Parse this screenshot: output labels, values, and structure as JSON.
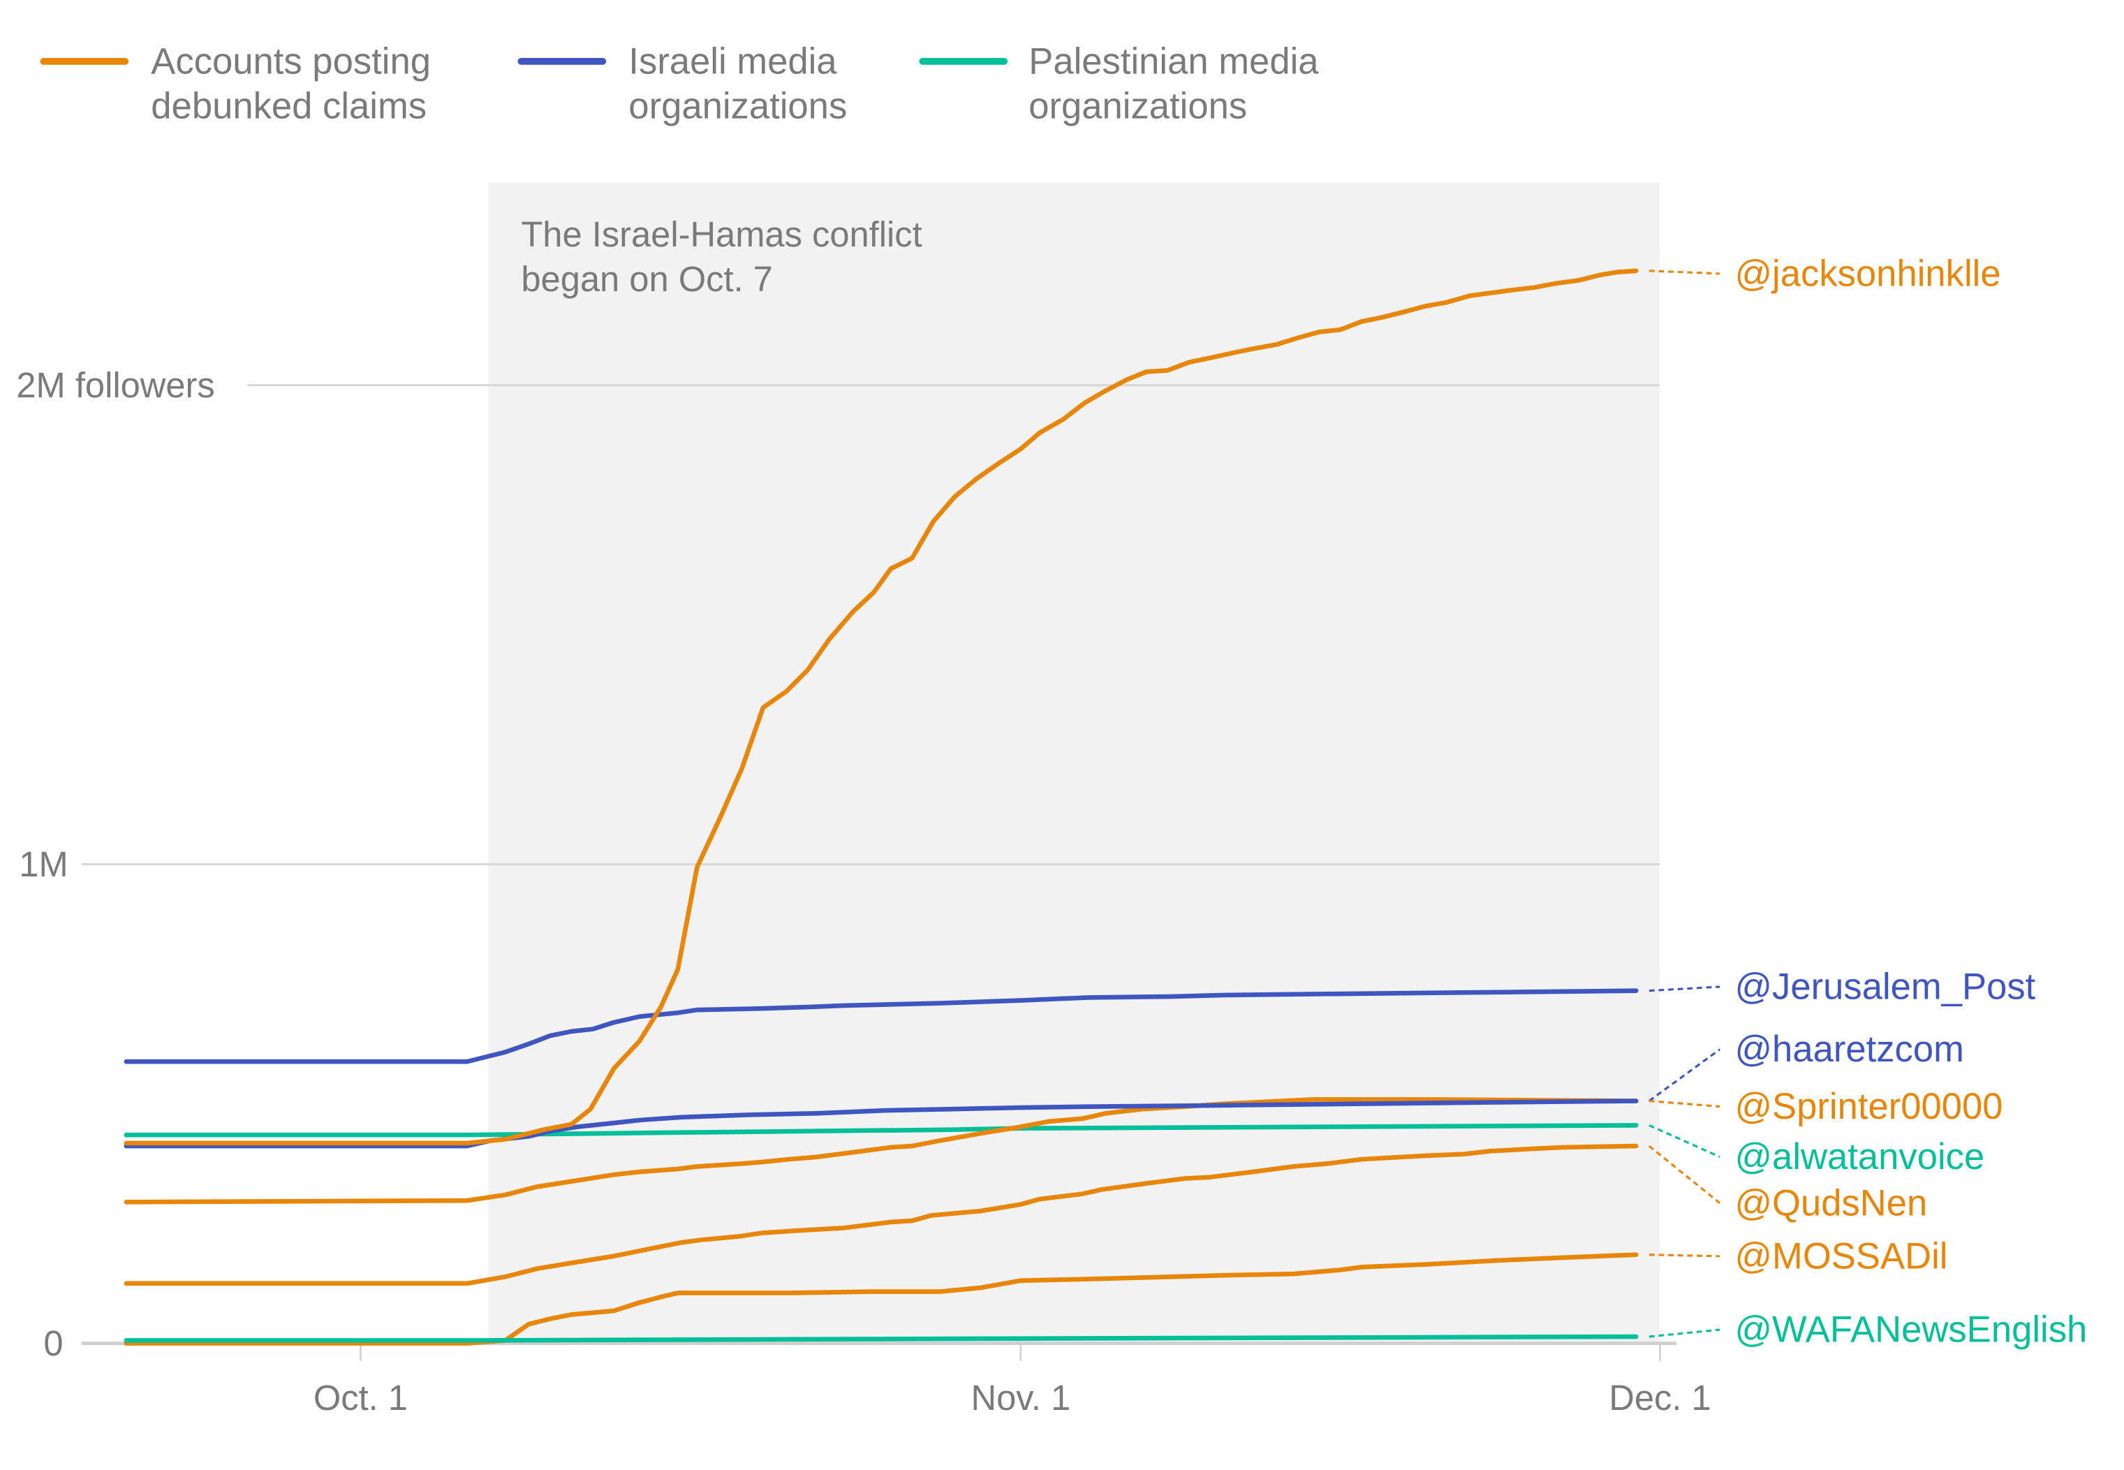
{
  "chart_data": {
    "type": "line",
    "x_unit": "days since Oct. 1 (2023)",
    "y_unit": "followers (thousands)",
    "ylim": [
      0,
      2400
    ],
    "xlim": [
      -11,
      60
    ],
    "grid": true,
    "yticks": [
      {
        "value": 0,
        "label": "0"
      },
      {
        "value": 1000,
        "label": "1M"
      },
      {
        "value": 2000,
        "label": "2M followers"
      }
    ],
    "xticks": [
      {
        "value": 0,
        "label": "Oct. 1"
      },
      {
        "value": 31,
        "label": "Nov. 1"
      },
      {
        "value": 61,
        "label": "Dec. 1"
      }
    ],
    "legend": {
      "placement": "top-left",
      "entries": [
        {
          "group": "debunked",
          "line1": "Accounts posting",
          "line2": "debunked claims",
          "color": "#E8860A"
        },
        {
          "group": "israeli",
          "line1": "Israeli media",
          "line2": "organizations",
          "color": "#3F56C0"
        },
        {
          "group": "palestinian",
          "line1": "Palestinian media",
          "line2": "organizations",
          "color": "#05BF9A"
        }
      ]
    },
    "annotation": {
      "line1": "The Israel-Hamas conflict",
      "line2": "began on Oct. 7",
      "shade_from_day": 6,
      "shade_to_day": 61
    },
    "series": [
      {
        "name": "@jacksonhinklle",
        "group": "debunked",
        "color": "#E8860A",
        "points": [
          [
            -11,
            418
          ],
          [
            5,
            418
          ],
          [
            6.8,
            426
          ],
          [
            8.6,
            446
          ],
          [
            9.9,
            457
          ],
          [
            10.8,
            489
          ],
          [
            11.9,
            574
          ],
          [
            13.1,
            631
          ],
          [
            14.1,
            702
          ],
          [
            14.9,
            781
          ],
          [
            15.8,
            994
          ],
          [
            16.9,
            1099
          ],
          [
            17.9,
            1199
          ],
          [
            18.9,
            1327
          ],
          [
            20,
            1361
          ],
          [
            21,
            1406
          ],
          [
            22,
            1469
          ],
          [
            23.1,
            1526
          ],
          [
            24.1,
            1568
          ],
          [
            24.9,
            1617
          ],
          [
            25.9,
            1639
          ],
          [
            26.9,
            1716
          ],
          [
            27.9,
            1767
          ],
          [
            28.9,
            1804
          ],
          [
            30,
            1838
          ],
          [
            31,
            1867
          ],
          [
            31.9,
            1901
          ],
          [
            33,
            1929
          ],
          [
            34,
            1963
          ],
          [
            35,
            1989
          ],
          [
            36,
            2012
          ],
          [
            36.9,
            2028
          ],
          [
            37.9,
            2031
          ],
          [
            38.9,
            2048
          ],
          [
            39.9,
            2057
          ],
          [
            41,
            2068
          ],
          [
            42,
            2077
          ],
          [
            43,
            2085
          ],
          [
            44.1,
            2100
          ],
          [
            45,
            2111
          ],
          [
            46,
            2116
          ],
          [
            47,
            2133
          ],
          [
            48,
            2142
          ],
          [
            49,
            2153
          ],
          [
            50,
            2165
          ],
          [
            51,
            2173
          ],
          [
            52.1,
            2187
          ],
          [
            53.1,
            2193
          ],
          [
            54.1,
            2199
          ],
          [
            55.1,
            2204
          ],
          [
            56.2,
            2213
          ],
          [
            57.2,
            2219
          ],
          [
            58.2,
            2230
          ],
          [
            59,
            2236
          ],
          [
            59.9,
            2239
          ]
        ]
      },
      {
        "name": "@Jerusalem_Post",
        "group": "israeli",
        "color": "#3F56C0",
        "points": [
          [
            -11,
            588
          ],
          [
            5,
            588
          ],
          [
            6.8,
            608
          ],
          [
            7.9,
            625
          ],
          [
            8.9,
            642
          ],
          [
            9.9,
            651
          ],
          [
            10.9,
            656
          ],
          [
            11.9,
            670
          ],
          [
            13.1,
            682
          ],
          [
            14.9,
            690
          ],
          [
            15.8,
            696
          ],
          [
            18.8,
            699
          ],
          [
            21,
            702
          ],
          [
            22.7,
            705
          ],
          [
            27.2,
            710
          ],
          [
            31,
            716
          ],
          [
            34.2,
            722
          ],
          [
            38,
            724
          ],
          [
            40.6,
            727
          ],
          [
            47,
            730
          ],
          [
            53.4,
            733
          ],
          [
            59.9,
            736
          ]
        ]
      },
      {
        "name": "@haaretzcom",
        "group": "israeli",
        "color": "#3F56C0",
        "points": [
          [
            -11,
            412
          ],
          [
            5,
            412
          ],
          [
            6.1,
            423
          ],
          [
            7.9,
            432
          ],
          [
            8.9,
            443
          ],
          [
            10.2,
            452
          ],
          [
            11.9,
            460
          ],
          [
            13.1,
            466
          ],
          [
            15,
            472
          ],
          [
            18.2,
            477
          ],
          [
            21.4,
            480
          ],
          [
            24.6,
            486
          ],
          [
            27.8,
            489
          ],
          [
            31,
            492
          ],
          [
            34.2,
            494
          ],
          [
            40.6,
            497
          ],
          [
            47,
            500
          ],
          [
            53.4,
            503
          ],
          [
            59.9,
            506
          ]
        ]
      },
      {
        "name": "@Sprinter00000",
        "group": "debunked",
        "color": "#E8860A",
        "points": [
          [
            -11,
            295
          ],
          [
            5,
            298
          ],
          [
            6.8,
            310
          ],
          [
            8.3,
            327
          ],
          [
            9.9,
            338
          ],
          [
            11.9,
            352
          ],
          [
            13.1,
            358
          ],
          [
            14.9,
            364
          ],
          [
            15.8,
            369
          ],
          [
            17.9,
            375
          ],
          [
            18.8,
            378
          ],
          [
            20.1,
            384
          ],
          [
            21.4,
            389
          ],
          [
            23,
            398
          ],
          [
            24.9,
            409
          ],
          [
            25.9,
            412
          ],
          [
            27.2,
            423
          ],
          [
            29.1,
            438
          ],
          [
            31,
            452
          ],
          [
            32.3,
            463
          ],
          [
            33.9,
            469
          ],
          [
            35,
            480
          ],
          [
            36.7,
            489
          ],
          [
            38.7,
            494
          ],
          [
            40.6,
            500
          ],
          [
            44.7,
            509
          ],
          [
            50.2,
            509
          ],
          [
            59.9,
            506
          ]
        ]
      },
      {
        "name": "@alwatanvoice",
        "group": "palestinian",
        "color": "#05BF9A",
        "points": [
          [
            -11,
            435
          ],
          [
            5,
            435
          ],
          [
            15,
            440
          ],
          [
            27.8,
            446
          ],
          [
            31,
            449
          ],
          [
            59.9,
            455
          ]
        ]
      },
      {
        "name": "@QudsNen",
        "group": "debunked",
        "color": "#E8860A",
        "points": [
          [
            -11,
            125
          ],
          [
            5,
            125
          ],
          [
            6.8,
            139
          ],
          [
            8.3,
            156
          ],
          [
            10.2,
            170
          ],
          [
            11.9,
            182
          ],
          [
            13.1,
            193
          ],
          [
            15,
            210
          ],
          [
            16,
            216
          ],
          [
            17.9,
            224
          ],
          [
            18.8,
            230
          ],
          [
            20.8,
            236
          ],
          [
            22.7,
            241
          ],
          [
            24.9,
            253
          ],
          [
            25.9,
            256
          ],
          [
            26.8,
            267
          ],
          [
            29.1,
            276
          ],
          [
            31,
            290
          ],
          [
            31.9,
            301
          ],
          [
            33.9,
            312
          ],
          [
            34.8,
            321
          ],
          [
            37.1,
            335
          ],
          [
            38.7,
            344
          ],
          [
            39.9,
            347
          ],
          [
            41.9,
            358
          ],
          [
            43.8,
            369
          ],
          [
            45.4,
            375
          ],
          [
            47,
            384
          ],
          [
            48.9,
            389
          ],
          [
            50.2,
            392
          ],
          [
            51.8,
            395
          ],
          [
            53,
            401
          ],
          [
            55,
            406
          ],
          [
            56.5,
            409
          ],
          [
            59.9,
            412
          ]
        ]
      },
      {
        "name": "@MOSSADil",
        "group": "debunked",
        "color": "#E8860A",
        "points": [
          [
            -11,
            0
          ],
          [
            5,
            0
          ],
          [
            6.8,
            6
          ],
          [
            7.9,
            40
          ],
          [
            8.9,
            51
          ],
          [
            9.9,
            60
          ],
          [
            11.9,
            68
          ],
          [
            13.1,
            85
          ],
          [
            14.1,
            97
          ],
          [
            14.9,
            105
          ],
          [
            20.1,
            105
          ],
          [
            24,
            108
          ],
          [
            27.2,
            108
          ],
          [
            29.1,
            116
          ],
          [
            31,
            131
          ],
          [
            34.2,
            134
          ],
          [
            40.6,
            142
          ],
          [
            43.8,
            145
          ],
          [
            46,
            153
          ],
          [
            47,
            159
          ],
          [
            50.2,
            165
          ],
          [
            53.4,
            173
          ],
          [
            56.5,
            179
          ],
          [
            59.9,
            185
          ]
        ]
      },
      {
        "name": "@WAFANewsEnglish",
        "group": "palestinian",
        "color": "#05BF9A",
        "points": [
          [
            -11,
            6
          ],
          [
            5,
            6
          ],
          [
            31,
            10
          ],
          [
            59.9,
            14
          ]
        ]
      }
    ]
  }
}
